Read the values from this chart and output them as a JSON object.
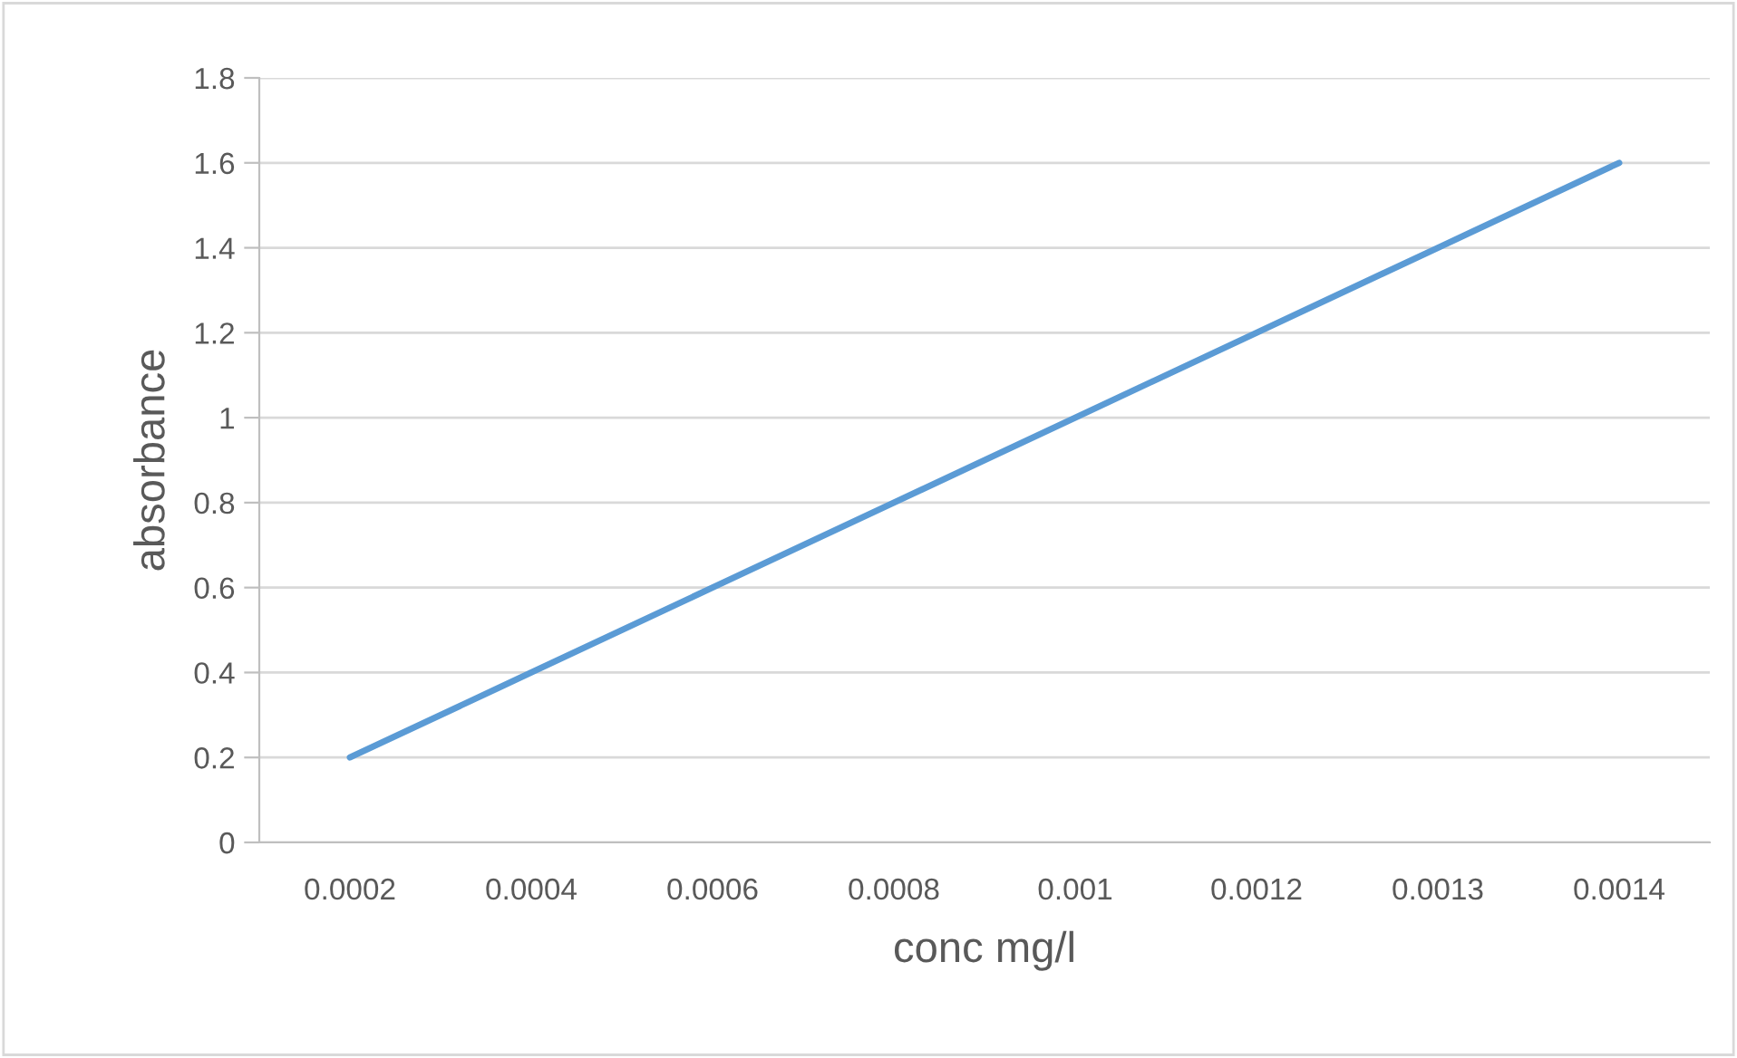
{
  "chart_data": {
    "type": "line",
    "xlabel": "conc mg/l",
    "ylabel": "absorbance",
    "categories": [
      "0.0002",
      "0.0004",
      "0.0006",
      "0.0008",
      "0.001",
      "0.0012",
      "0.0013",
      "0.0014"
    ],
    "series": [
      {
        "color": "#5b9bd5",
        "values": [
          0.2,
          0.4,
          0.6,
          0.8,
          1,
          1.2,
          1.4,
          1.6
        ]
      }
    ],
    "ylim": [
      0,
      1.8
    ],
    "yticks": [
      0,
      0.2,
      0.4,
      0.6,
      0.8,
      1,
      1.2,
      1.4,
      1.6,
      1.8
    ],
    "grid": "y",
    "marker": "none",
    "line_style": "solid"
  }
}
